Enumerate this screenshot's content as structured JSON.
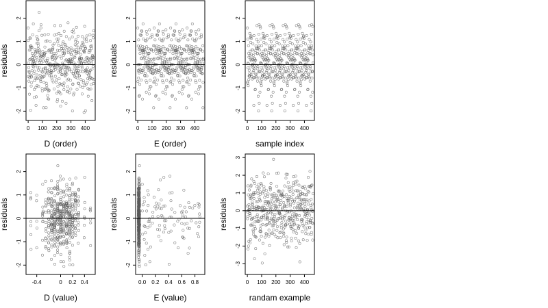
{
  "chart_data": [
    {
      "type": "scatter",
      "xlabel": "D (order)",
      "ylabel": "residuals",
      "xlim": [
        -15,
        470
      ],
      "ylim": [
        -2.4,
        2.75
      ],
      "xticks": [
        0,
        100,
        200,
        300,
        400
      ],
      "xtick_labels": [
        "0",
        "100",
        "200",
        "300",
        "400"
      ],
      "yticks": [
        -2,
        -1,
        0,
        1,
        2
      ],
      "ytick_labels": [
        "-2",
        "-1",
        "0",
        "1",
        "2"
      ],
      "reference_line_y": 0,
      "marker": "open-circle",
      "n_points": 460,
      "x_distribution": "sequential",
      "x_range": [
        0,
        460
      ],
      "y_range": [
        -2.2,
        2.6
      ],
      "points_y_sd": 0.8
    },
    {
      "type": "scatter",
      "xlabel": "E (order)",
      "ylabel": "residuals",
      "xlim": [
        -15,
        470
      ],
      "ylim": [
        -2.4,
        2.75
      ],
      "xticks": [
        0,
        100,
        200,
        300,
        400
      ],
      "xtick_labels": [
        "0",
        "100",
        "200",
        "300",
        "400"
      ],
      "yticks": [
        -2,
        -1,
        0,
        1,
        2
      ],
      "ytick_labels": [
        "-2",
        "-1",
        "0",
        "1",
        "2"
      ],
      "reference_line_y": 0,
      "marker": "open-circle",
      "n_points": 460,
      "x_distribution": "sequential",
      "x_range": [
        0,
        460
      ],
      "y_range": [
        -2.2,
        2.6
      ],
      "points_y_sd": 0.8
    },
    {
      "type": "scatter",
      "xlabel": "sample index",
      "ylabel": "residuals",
      "xlim": [
        -15,
        470
      ],
      "ylim": [
        -2.4,
        2.75
      ],
      "xticks": [
        0,
        100,
        200,
        300,
        400
      ],
      "xtick_labels": [
        "0",
        "100",
        "200",
        "300",
        "400"
      ],
      "yticks": [
        -2,
        -1,
        0,
        1,
        2
      ],
      "ytick_labels": [
        "-2",
        "-1",
        "0",
        "1",
        "2"
      ],
      "reference_line_y": 0,
      "marker": "open-circle",
      "n_points": 460,
      "x_distribution": "sequential",
      "x_range": [
        0,
        460
      ],
      "y_range": [
        -2.2,
        2.6
      ],
      "points_y_sd": 0.8
    },
    {
      "type": "scatter",
      "xlabel": "D (value)",
      "ylabel": "residuals",
      "xlim": [
        -0.58,
        0.58
      ],
      "ylim": [
        -2.4,
        2.75
      ],
      "xticks": [
        -0.4,
        0,
        0.2,
        0.4
      ],
      "xtick_labels": [
        "-0.4",
        "0",
        "0.2",
        "0.4"
      ],
      "yticks": [
        -2,
        -1,
        0,
        1,
        2
      ],
      "ytick_labels": [
        "-2",
        "-1",
        "0",
        "1",
        "2"
      ],
      "reference_line_y": 0,
      "marker": "open-circle",
      "n_points": 460,
      "x_distribution": "discrete-columns",
      "x_levels": [
        -0.5,
        -0.4,
        -0.3,
        -0.25,
        -0.2,
        -0.15,
        -0.1,
        -0.05,
        0.0,
        0.05,
        0.1,
        0.15,
        0.2,
        0.25,
        0.3,
        0.4,
        0.5
      ],
      "x_level_weights": [
        1,
        2,
        2,
        3,
        4,
        6,
        7,
        8,
        9,
        8,
        9,
        7,
        5,
        4,
        3,
        2,
        1
      ],
      "y_range": [
        -2.2,
        2.6
      ],
      "points_y_sd": 0.8
    },
    {
      "type": "scatter",
      "xlabel": "E (value)",
      "ylabel": "residuals",
      "xlim": [
        -0.1,
        0.95
      ],
      "ylim": [
        -2.4,
        2.75
      ],
      "xticks": [
        0.0,
        0.2,
        0.4,
        0.6,
        0.8
      ],
      "xtick_labels": [
        "0.0",
        "0.2",
        "0.4",
        "0.6",
        "0.8"
      ],
      "yticks": [
        -2,
        -1,
        0,
        1,
        2
      ],
      "ytick_labels": [
        "-2",
        "-1",
        "0",
        "1",
        "2"
      ],
      "reference_line_y": 0,
      "marker": "open-circle",
      "n_points": 460,
      "x_distribution": "clustered-near-zero",
      "x_cluster_center": -0.05,
      "x_cluster_fraction": 0.78,
      "x_tail_range": [
        0.0,
        0.9
      ],
      "y_range": [
        -2.2,
        2.6
      ],
      "points_y_sd": 0.8
    },
    {
      "type": "scatter",
      "xlabel": "randam example",
      "ylabel": "residuals",
      "xlim": [
        -15,
        470
      ],
      "ylim": [
        -3.6,
        3.2
      ],
      "xticks": [
        0,
        100,
        200,
        300,
        400
      ],
      "xtick_labels": [
        "0",
        "100",
        "200",
        "300",
        "400"
      ],
      "yticks": [
        -3,
        -2,
        -1,
        0,
        1,
        2,
        3
      ],
      "ytick_labels": [
        "-3",
        "-2",
        "-1",
        "0",
        "1",
        "2",
        "3"
      ],
      "reference_line_y": 0,
      "marker": "open-circle",
      "n_points": 460,
      "x_distribution": "sequential",
      "x_range": [
        0,
        460
      ],
      "y_range": [
        -3.3,
        2.9
      ],
      "points_y_sd": 1.0
    }
  ],
  "colors": {
    "background": "#ffffff",
    "axis": "#000000",
    "points": "#5a5a5a"
  }
}
